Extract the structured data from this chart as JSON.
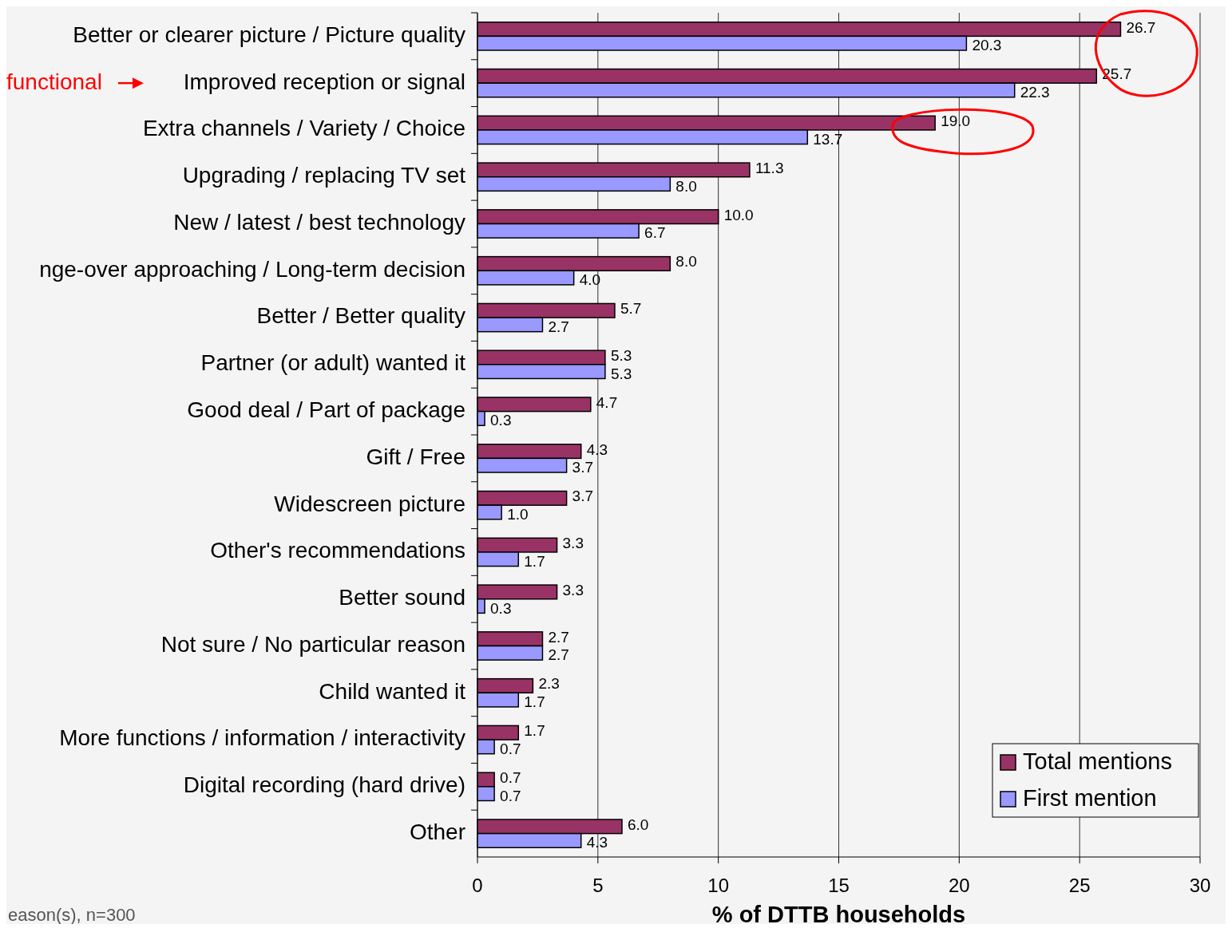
{
  "chart_data": {
    "type": "bar",
    "orientation": "horizontal",
    "xlabel": "% of DTTB households",
    "categories": [
      "Better or clearer picture / Picture quality",
      "Improved reception or signal",
      "Extra channels / Variety / Choice",
      "Upgrading / replacing TV set",
      "New / latest / best technology",
      "nge-over approaching / Long-term decision",
      "Better / Better quality",
      "Partner (or adult) wanted it",
      "Good deal / Part of package",
      "Gift / Free",
      "Widescreen picture",
      "Other's recommendations",
      "Better sound",
      "Not sure / No particular reason",
      "Child wanted it",
      "More functions / information / interactivity",
      "Digital recording (hard drive)",
      "Other"
    ],
    "series": [
      {
        "name": "Total mentions",
        "color": "#993366",
        "values": [
          26.7,
          25.7,
          19.0,
          11.3,
          10.0,
          8.0,
          5.7,
          5.3,
          4.7,
          4.3,
          3.7,
          3.3,
          3.3,
          2.7,
          2.3,
          1.7,
          0.7,
          6.0
        ],
        "value_labels": [
          "26.7",
          "25.7",
          "19.0",
          "11.3",
          "10.0",
          "8.0",
          "5.7",
          "5.3",
          "4.7",
          "4.3",
          "3.7",
          "3.3",
          "3.3",
          "2.7",
          "2.3",
          "1.7",
          "0.7",
          "6.0"
        ]
      },
      {
        "name": "First mention",
        "color": "#9999ff",
        "values": [
          20.3,
          22.3,
          13.7,
          8.0,
          6.7,
          4.0,
          2.7,
          5.3,
          0.3,
          3.7,
          1.0,
          1.7,
          0.3,
          2.7,
          1.7,
          0.7,
          0.7,
          4.3
        ],
        "value_labels": [
          "20.3",
          "22.3",
          "13.7",
          "8.0",
          "6.7",
          "4.0",
          "2.7",
          "5.3",
          "0.3",
          "3.7",
          "1.0",
          "1.7",
          "0.3",
          "2.7",
          "1.7",
          "0.7",
          "0.7",
          "4.3"
        ]
      }
    ],
    "xlim": [
      0,
      30
    ],
    "xticks": [
      0,
      5,
      10,
      15,
      20,
      25,
      30
    ],
    "grid": "x",
    "legend": "bottom right",
    "annotations": [
      "functional",
      "eason(s), n=300"
    ]
  }
}
